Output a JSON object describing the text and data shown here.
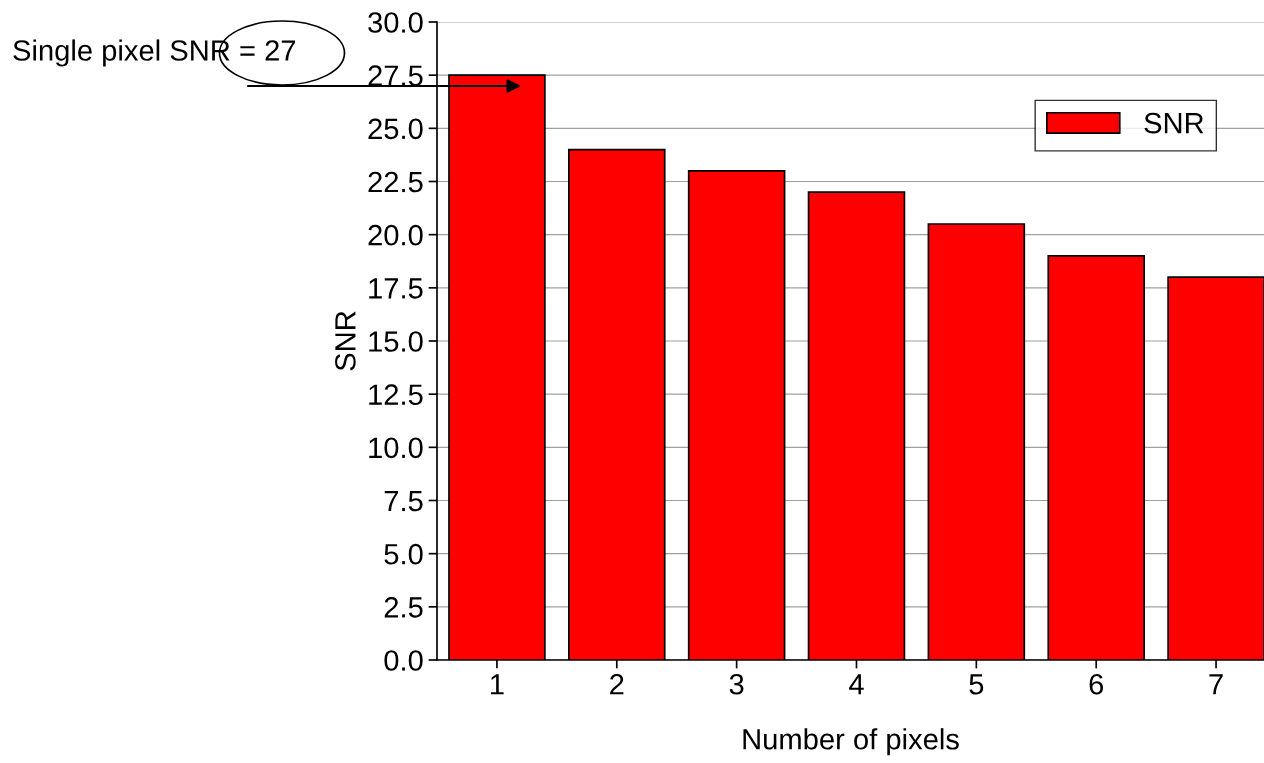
{
  "chart_data": {
    "type": "bar",
    "xlabel": "Number of pixels",
    "ylabel": "SNR",
    "x": [
      1,
      2,
      3,
      4,
      5,
      6,
      7
    ],
    "series": [
      {
        "name": "SNR",
        "color": "#ff0000",
        "values": [
          27.5,
          24.0,
          23.0,
          22.0,
          20.5,
          19.0,
          18.0
        ]
      }
    ],
    "xlim": [
      0.5,
      7.4
    ],
    "xticks": [
      1,
      2,
      3,
      4,
      5,
      6,
      7
    ],
    "ylim": [
      0,
      30
    ],
    "yticks": [
      {
        "value": 0,
        "label": "0.0"
      },
      {
        "value": 2.5,
        "label": "2.5"
      },
      {
        "value": 5,
        "label": "5.0"
      },
      {
        "value": 7.5,
        "label": "7.5"
      },
      {
        "value": 10,
        "label": "10.0"
      },
      {
        "value": 12.5,
        "label": "12.5"
      },
      {
        "value": 15,
        "label": "15.0"
      },
      {
        "value": 17.5,
        "label": "17.5"
      },
      {
        "value": 20,
        "label": "20.0"
      },
      {
        "value": 22.5,
        "label": "22.5"
      },
      {
        "value": 25,
        "label": "25.0"
      },
      {
        "value": 27.5,
        "label": "27.5"
      },
      {
        "value": 30,
        "label": "30.0"
      }
    ],
    "annotations": [
      "Single pixel SNR = 27"
    ],
    "grid": "y",
    "legend": "top right"
  }
}
